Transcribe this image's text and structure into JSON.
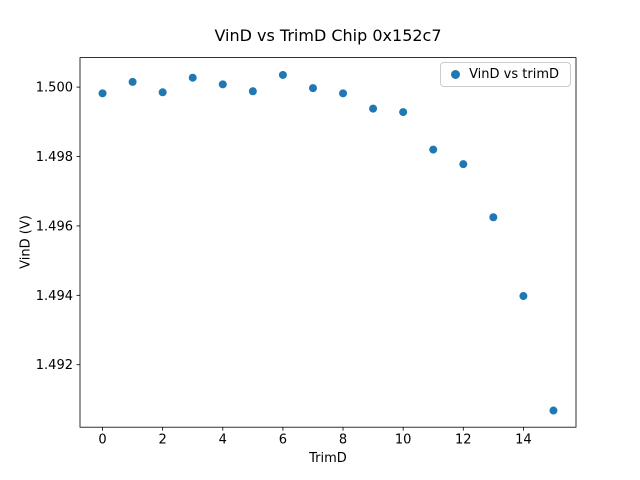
{
  "chart_data": {
    "type": "scatter",
    "title": "VinD vs TrimD Chip 0x152c7",
    "xlabel": "TrimD",
    "ylabel": "VinD (V)",
    "legend_label": "VinD vs trimD",
    "legend_position": "upper right",
    "marker_color": "#1f77b4",
    "grid": false,
    "x": [
      0,
      1,
      2,
      3,
      4,
      5,
      6,
      7,
      8,
      9,
      10,
      11,
      12,
      13,
      14,
      15
    ],
    "y": [
      1.49982,
      1.50015,
      1.49985,
      1.50027,
      1.50008,
      1.49988,
      1.50035,
      1.49997,
      1.49982,
      1.49938,
      1.49928,
      1.4982,
      1.49778,
      1.49625,
      1.49398,
      1.49068
    ],
    "xlim": [
      -0.75,
      15.75
    ],
    "ylim": [
      1.4902,
      1.50085
    ],
    "xticks": [
      0,
      2,
      4,
      6,
      8,
      10,
      12,
      14
    ],
    "xtick_labels": [
      "0",
      "2",
      "4",
      "6",
      "8",
      "10",
      "12",
      "14"
    ],
    "yticks": [
      1.492,
      1.494,
      1.496,
      1.498,
      1.5
    ],
    "ytick_labels": [
      "1.492",
      "1.494",
      "1.496",
      "1.498",
      "1.500"
    ]
  }
}
